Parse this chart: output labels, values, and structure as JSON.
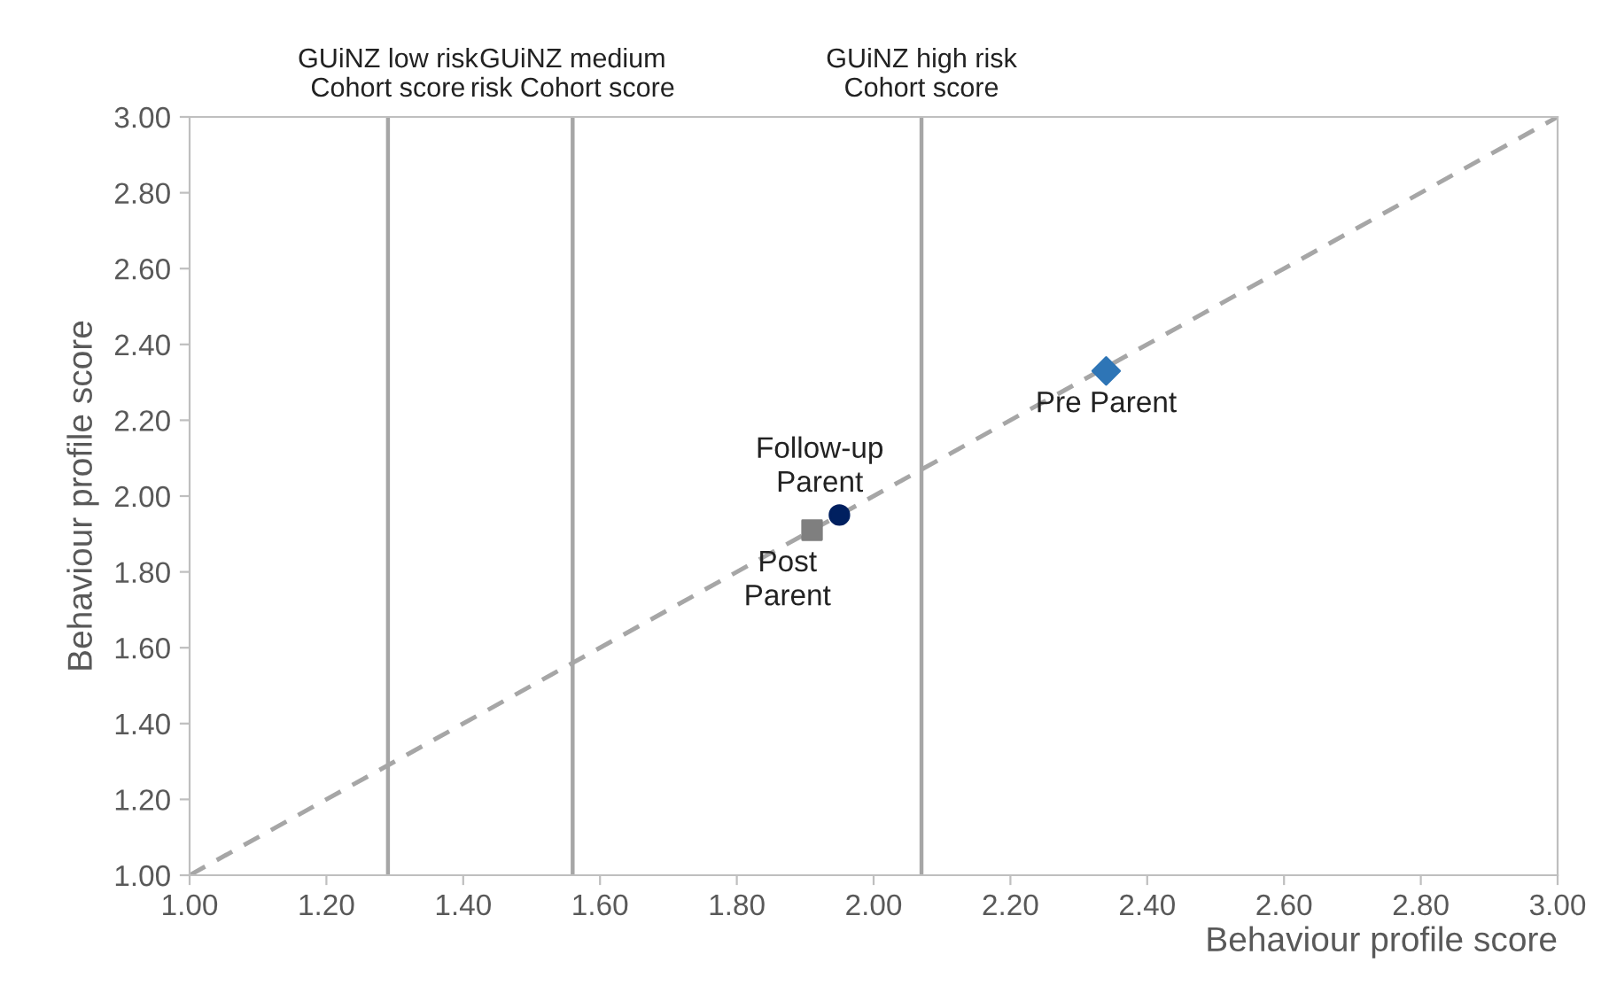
{
  "chart_data": {
    "type": "scatter",
    "xlabel": "Behaviour profile score",
    "ylabel": "Behaviour profile score",
    "xlim": [
      1.0,
      3.0
    ],
    "ylim": [
      1.0,
      3.0
    ],
    "xticks": [
      {
        "value": 1.0,
        "label": "1.00"
      },
      {
        "value": 1.2,
        "label": "1.20"
      },
      {
        "value": 1.4,
        "label": "1.40"
      },
      {
        "value": 1.6,
        "label": "1.60"
      },
      {
        "value": 1.8,
        "label": "1.80"
      },
      {
        "value": 2.0,
        "label": "2.00"
      },
      {
        "value": 2.2,
        "label": "2.20"
      },
      {
        "value": 2.4,
        "label": "2.40"
      },
      {
        "value": 2.6,
        "label": "2.60"
      },
      {
        "value": 2.8,
        "label": "2.80"
      },
      {
        "value": 3.0,
        "label": "3.00"
      }
    ],
    "yticks": [
      {
        "value": 1.0,
        "label": "1.00"
      },
      {
        "value": 1.2,
        "label": "1.20"
      },
      {
        "value": 1.4,
        "label": "1.40"
      },
      {
        "value": 1.6,
        "label": "1.60"
      },
      {
        "value": 1.8,
        "label": "1.80"
      },
      {
        "value": 2.0,
        "label": "2.00"
      },
      {
        "value": 2.2,
        "label": "2.20"
      },
      {
        "value": 2.4,
        "label": "2.40"
      },
      {
        "value": 2.6,
        "label": "2.60"
      },
      {
        "value": 2.8,
        "label": "2.80"
      },
      {
        "value": 3.0,
        "label": "3.00"
      }
    ],
    "series": [
      {
        "type": "line",
        "x": [
          1.0,
          3.0
        ],
        "values": [
          1.0,
          3.0
        ],
        "color": "#a6a6a6",
        "line_style": "dashed",
        "marker": "none"
      },
      {
        "name": "Pre Parent",
        "x": [
          2.34
        ],
        "values": [
          2.33
        ],
        "color": "#2e75b6",
        "marker": "diamond"
      },
      {
        "name": "Post\nParent",
        "x": [
          1.91
        ],
        "values": [
          1.91
        ],
        "color": "#7f7f7f",
        "marker": "square"
      },
      {
        "name": "Follow-up\nParent",
        "x": [
          1.95
        ],
        "values": [
          1.95
        ],
        "color": "#002060",
        "marker": "circle"
      }
    ],
    "ref_lines": [
      {
        "axis": "x",
        "value": 1.29,
        "label": "GUiNZ low risk\nCohort score",
        "color": "#a6a6a6"
      },
      {
        "axis": "x",
        "value": 1.56,
        "label": "GUiNZ medium\nrisk Cohort score",
        "color": "#a6a6a6"
      },
      {
        "axis": "x",
        "value": 2.07,
        "label": "GUiNZ high risk\nCohort score",
        "color": "#a6a6a6"
      }
    ],
    "grid": false,
    "legend": false
  }
}
